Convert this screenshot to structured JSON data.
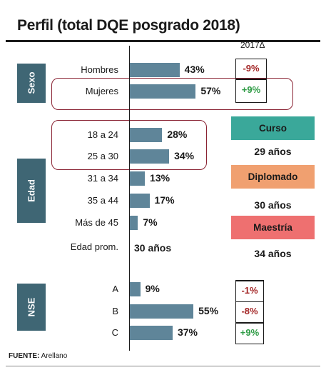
{
  "title": "Perfil (total DQE posgrado 2018)",
  "change_header": "2017∆",
  "source_label": "FUENTE:",
  "source_text": "Arellano",
  "colors": {
    "bar": "#5f8599",
    "section": "#3f6674",
    "negative": "#a32525",
    "positive": "#2e9b45",
    "highlight": "#8a2333",
    "curso": "#3aa89a",
    "diplomado": "#f0a070",
    "maestria": "#ee7070"
  },
  "sections": {
    "sexo": "Sexo",
    "edad": "Edad",
    "nse": "NSE"
  },
  "edad_prom": {
    "label": "Edad prom.",
    "value": "30 años"
  },
  "programs": [
    {
      "name": "Curso",
      "duration": "29 años"
    },
    {
      "name": "Diplomado",
      "duration": "30 años"
    },
    {
      "name": "Maestría",
      "duration": "34 años"
    }
  ],
  "chart_data": {
    "type": "bar",
    "orientation": "horizontal",
    "title": "Perfil (total DQE posgrado 2018)",
    "groups": [
      {
        "name": "Sexo",
        "categories": [
          "Hombres",
          "Mujeres"
        ],
        "values": [
          43,
          57
        ],
        "labels": [
          "43%",
          "57%"
        ],
        "change_2017": [
          "-9%",
          "+9%"
        ]
      },
      {
        "name": "Edad",
        "categories": [
          "18 a 24",
          "25 a 30",
          "31 a 34",
          "35 a 44",
          "Más de 45"
        ],
        "values": [
          28,
          34,
          13,
          17,
          7
        ],
        "labels": [
          "28%",
          "34%",
          "13%",
          "17%",
          "7%"
        ]
      },
      {
        "name": "NSE",
        "categories": [
          "A",
          "B",
          "C"
        ],
        "values": [
          9,
          55,
          37
        ],
        "labels": [
          "9%",
          "55%",
          "37%"
        ],
        "change_2017": [
          "-1%",
          "-8%",
          "+9%"
        ]
      }
    ],
    "unit": "%"
  }
}
